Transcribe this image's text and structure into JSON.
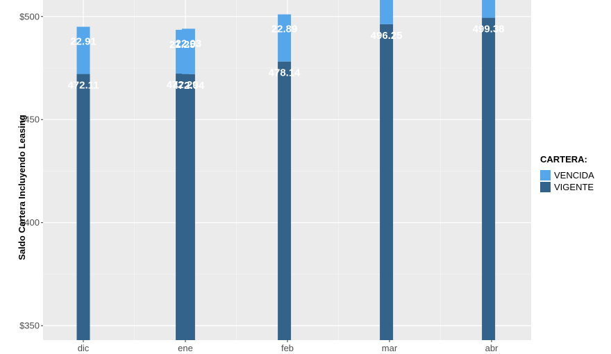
{
  "chart_data": {
    "type": "bar",
    "stacked": true,
    "ylabel": "Saldo Cartera Incluyendo Leasing",
    "ylim": [
      343,
      508
    ],
    "y_ticks": [
      350,
      400,
      450,
      500
    ],
    "y_tick_labels": [
      "$350",
      "$400",
      "$450",
      "$500"
    ],
    "categories": [
      "dic",
      "ene",
      "feb",
      "mar",
      "abr"
    ],
    "category_positions": [
      0,
      1,
      2,
      3,
      4
    ],
    "bars": [
      {
        "x": 0.0,
        "vigente": 472.11,
        "vencida": 22.91,
        "vigente_label": "472.11",
        "vencida_label": "22.91"
      },
      {
        "x": 0.97,
        "vigente": 472.29,
        "vencida": 21.25,
        "vigente_label": "472.29",
        "vencida_label": "21.25"
      },
      {
        "x": 1.03,
        "vigente": 472.04,
        "vencida": 22.03,
        "vigente_label": "472.04",
        "vencida_label": "22.03"
      },
      {
        "x": 1.97,
        "vigente": 478.14,
        "vencida": 22.89,
        "vigente_label": "478.14",
        "vencida_label": "22.89"
      },
      {
        "x": 2.97,
        "vigente": 496.25,
        "vencida": 20.0,
        "vigente_label": "496.25",
        "vencida_label": ""
      },
      {
        "x": 3.97,
        "vigente": 499.38,
        "vencida": 20.0,
        "vigente_label": "499.38",
        "vencida_label": ""
      }
    ],
    "legend": {
      "title": "CARTERA:",
      "position": "right",
      "items": [
        {
          "key": "vencida",
          "label": "VENCIDA",
          "color": "#56a6eb"
        },
        {
          "key": "vigente",
          "label": "VIGENTE",
          "color": "#33628a"
        }
      ]
    },
    "colors": {
      "panel": "#ebebeb",
      "grid_major": "#ffffff",
      "grid_minor": "#f5f5f5"
    },
    "grid": true
  }
}
